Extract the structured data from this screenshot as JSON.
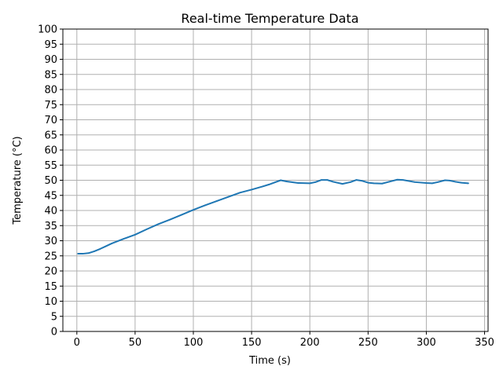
{
  "chart_data": {
    "type": "line",
    "title": "Real-time Temperature Data",
    "xlabel": "Time (s)",
    "ylabel": "Temperature (°C)",
    "xlim": [
      -12,
      353
    ],
    "ylim": [
      0,
      100
    ],
    "xticks": [
      0,
      50,
      100,
      150,
      200,
      250,
      300,
      350
    ],
    "yticks": [
      0,
      5,
      10,
      15,
      20,
      25,
      30,
      35,
      40,
      45,
      50,
      55,
      60,
      65,
      70,
      75,
      80,
      85,
      90,
      95,
      100
    ],
    "grid": true,
    "line_color": "#1f77b4",
    "series": [
      {
        "x": [
          1,
          5,
          10,
          15,
          20,
          25,
          30,
          40,
          50,
          60,
          70,
          80,
          90,
          100,
          110,
          120,
          130,
          140,
          150,
          160,
          165,
          170,
          175,
          180,
          190,
          200,
          205,
          210,
          215,
          220,
          228,
          235,
          240,
          245,
          250,
          255,
          262,
          268,
          275,
          280,
          290,
          300,
          305,
          310,
          316,
          320,
          325,
          330,
          336
        ],
        "y": [
          25.7,
          25.7,
          25.9,
          26.5,
          27.3,
          28.2,
          29.1,
          30.6,
          32.0,
          33.8,
          35.5,
          37.0,
          38.6,
          40.2,
          41.7,
          43.1,
          44.5,
          45.9,
          46.9,
          48.0,
          48.6,
          49.3,
          50.0,
          49.6,
          49.1,
          49.0,
          49.4,
          50.1,
          50.1,
          49.5,
          48.8,
          49.4,
          50.1,
          49.8,
          49.2,
          49.0,
          48.9,
          49.5,
          50.2,
          50.1,
          49.4,
          49.1,
          49.0,
          49.4,
          50.0,
          49.9,
          49.5,
          49.2,
          49.0
        ]
      }
    ]
  }
}
